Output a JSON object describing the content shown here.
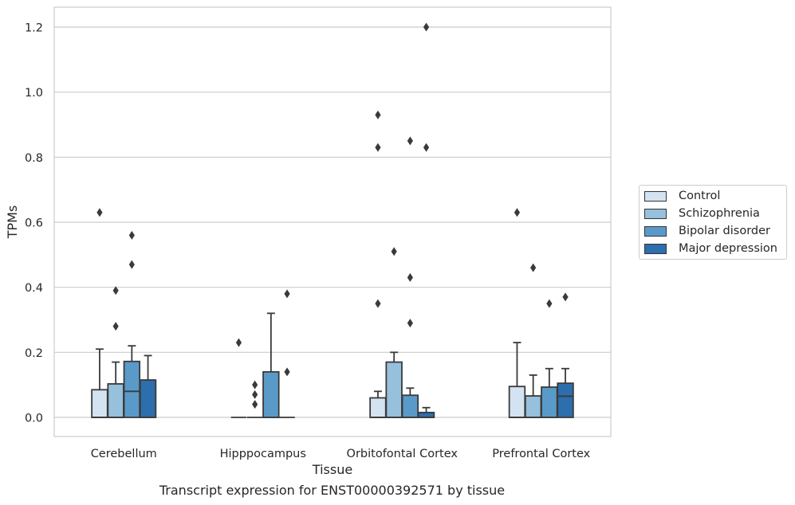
{
  "chart_data": {
    "type": "box",
    "title": "",
    "xlabel": "Tissue",
    "ylabel": "TPMs",
    "caption": "Transcript expression for ENST00000392571 by tissue",
    "ylim": [
      -0.06,
      1.26
    ],
    "yticks": [
      0.0,
      0.2,
      0.4,
      0.6,
      0.8,
      1.0,
      1.2
    ],
    "ytick_labels": [
      "0.0",
      "0.2",
      "0.4",
      "0.6",
      "0.8",
      "1.0",
      "1.2"
    ],
    "grid": "horizontal",
    "legend_position": "right",
    "categories": [
      "Cerebellum",
      "Hipppocampus",
      "Orbitofontal Cortex",
      "Prefrontal Cortex"
    ],
    "series": [
      {
        "name": "Control",
        "color": "#d4e3f1",
        "boxes": [
          {
            "q1": 0.0,
            "median": 0.0,
            "q3": 0.085,
            "whisker_low": 0.0,
            "whisker_high": 0.21,
            "outliers": [
              0.63
            ]
          },
          {
            "q1": 0.0,
            "median": 0.0,
            "q3": 0.0,
            "whisker_low": 0.0,
            "whisker_high": 0.0,
            "outliers": [
              0.23
            ]
          },
          {
            "q1": 0.0,
            "median": 0.0,
            "q3": 0.06,
            "whisker_low": 0.0,
            "whisker_high": 0.08,
            "outliers": [
              0.35,
              0.83,
              0.93
            ]
          },
          {
            "q1": 0.0,
            "median": 0.0,
            "q3": 0.095,
            "whisker_low": 0.0,
            "whisker_high": 0.23,
            "outliers": [
              0.63
            ]
          }
        ]
      },
      {
        "name": "Schizophrenia",
        "color": "#97c0dc",
        "boxes": [
          {
            "q1": 0.0,
            "median": 0.0,
            "q3": 0.103,
            "whisker_low": 0.0,
            "whisker_high": 0.17,
            "outliers": [
              0.28,
              0.39
            ]
          },
          {
            "q1": 0.0,
            "median": 0.0,
            "q3": 0.0,
            "whisker_low": 0.0,
            "whisker_high": 0.0,
            "outliers": [
              0.04,
              0.07,
              0.1
            ]
          },
          {
            "q1": 0.0,
            "median": 0.0,
            "q3": 0.17,
            "whisker_low": 0.0,
            "whisker_high": 0.2,
            "outliers": [
              0.51
            ]
          },
          {
            "q1": 0.0,
            "median": 0.0,
            "q3": 0.066,
            "whisker_low": 0.0,
            "whisker_high": 0.13,
            "outliers": [
              0.46
            ]
          }
        ]
      },
      {
        "name": "Bipolar disorder",
        "color": "#5a9ac9",
        "boxes": [
          {
            "q1": 0.0,
            "median": 0.08,
            "q3": 0.172,
            "whisker_low": 0.0,
            "whisker_high": 0.22,
            "outliers": [
              0.47,
              0.56
            ]
          },
          {
            "q1": 0.0,
            "median": 0.0,
            "q3": 0.14,
            "whisker_low": 0.0,
            "whisker_high": 0.32,
            "outliers": []
          },
          {
            "q1": 0.0,
            "median": 0.0,
            "q3": 0.068,
            "whisker_low": 0.0,
            "whisker_high": 0.09,
            "outliers": [
              0.29,
              0.43,
              0.85
            ]
          },
          {
            "q1": 0.0,
            "median": 0.0,
            "q3": 0.093,
            "whisker_low": 0.0,
            "whisker_high": 0.15,
            "outliers": [
              0.35
            ]
          }
        ]
      },
      {
        "name": "Major depression",
        "color": "#2d6eac",
        "boxes": [
          {
            "q1": 0.0,
            "median": 0.0,
            "q3": 0.115,
            "whisker_low": 0.0,
            "whisker_high": 0.19,
            "outliers": []
          },
          {
            "q1": 0.0,
            "median": 0.0,
            "q3": 0.0,
            "whisker_low": 0.0,
            "whisker_high": 0.0,
            "outliers": [
              0.14,
              0.38
            ]
          },
          {
            "q1": 0.0,
            "median": 0.0,
            "q3": 0.015,
            "whisker_low": 0.0,
            "whisker_high": 0.03,
            "outliers": [
              0.83,
              1.2
            ]
          },
          {
            "q1": 0.0,
            "median": 0.065,
            "q3": 0.105,
            "whisker_low": 0.0,
            "whisker_high": 0.15,
            "outliers": [
              0.37
            ]
          }
        ]
      }
    ]
  }
}
